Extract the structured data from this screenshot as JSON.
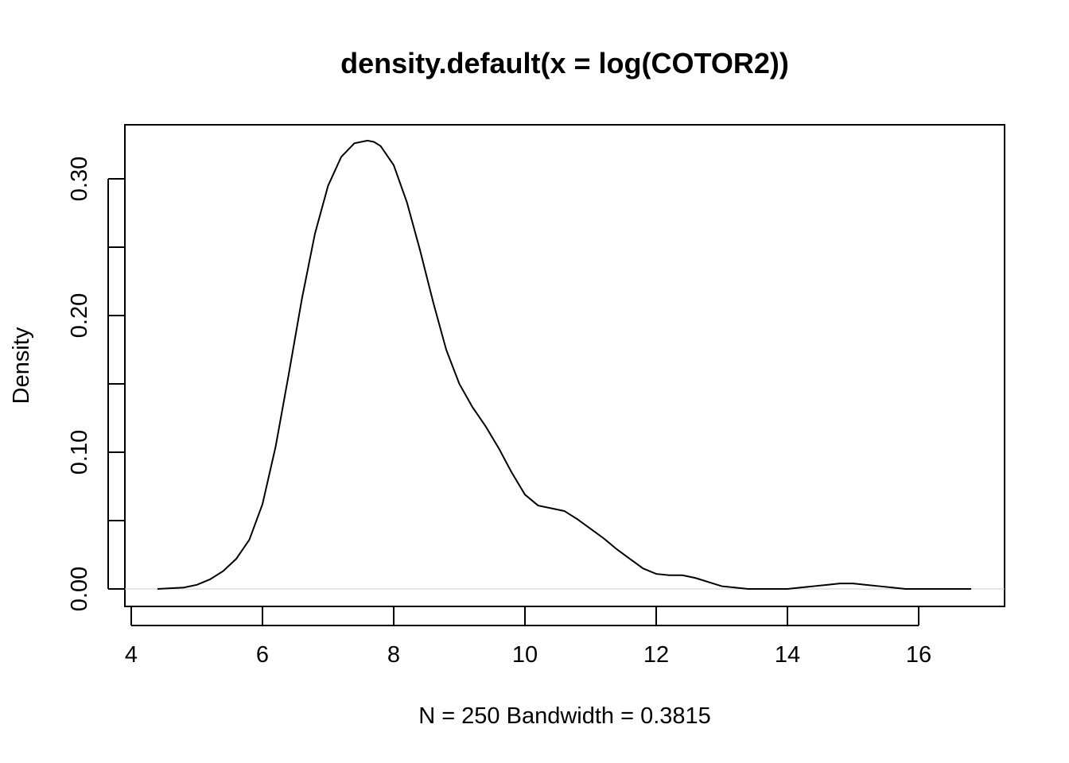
{
  "chart_data": {
    "type": "line",
    "title": "density.default(x = log(COTOR2))",
    "xlabel": "N = 250   Bandwidth = 0.3815",
    "ylabel": "Density",
    "xlim": [
      4,
      17
    ],
    "ylim": [
      -0.013,
      0.33
    ],
    "xticks": [
      4,
      6,
      8,
      10,
      12,
      14,
      16
    ],
    "xtick_labels": [
      "4",
      "6",
      "8",
      "10",
      "12",
      "14",
      "16"
    ],
    "yticks": [
      0,
      0.05,
      0.1,
      0.15,
      0.2,
      0.25,
      0.3
    ],
    "ytick_labels": [
      "0.00",
      "",
      "0.10",
      "",
      "0.20",
      "",
      "0.30"
    ],
    "grid": false,
    "series": [
      {
        "x": [
          4.4,
          4.8,
          5.0,
          5.2,
          5.4,
          5.6,
          5.8,
          6.0,
          6.2,
          6.4,
          6.6,
          6.8,
          7.0,
          7.2,
          7.4,
          7.6,
          7.7,
          7.8,
          8.0,
          8.2,
          8.4,
          8.6,
          8.8,
          9.0,
          9.2,
          9.4,
          9.6,
          9.8,
          10.0,
          10.2,
          10.4,
          10.6,
          10.8,
          11.0,
          11.2,
          11.4,
          11.6,
          11.8,
          12.0,
          12.2,
          12.4,
          12.6,
          12.8,
          13.0,
          13.2,
          13.4,
          13.6,
          13.8,
          14.0,
          14.2,
          14.4,
          14.6,
          14.8,
          15.0,
          15.2,
          15.4,
          15.6,
          15.8,
          16.0,
          16.2,
          16.4,
          16.8
        ],
        "y": [
          0.0,
          0.001,
          0.003,
          0.007,
          0.013,
          0.022,
          0.036,
          0.062,
          0.104,
          0.157,
          0.212,
          0.26,
          0.295,
          0.316,
          0.326,
          0.328,
          0.327,
          0.324,
          0.31,
          0.283,
          0.248,
          0.21,
          0.175,
          0.15,
          0.133,
          0.119,
          0.103,
          0.085,
          0.069,
          0.061,
          0.059,
          0.057,
          0.051,
          0.044,
          0.037,
          0.029,
          0.022,
          0.015,
          0.011,
          0.01,
          0.01,
          0.008,
          0.005,
          0.002,
          0.001,
          0.0,
          0.0,
          0.0,
          0.0,
          0.001,
          0.002,
          0.003,
          0.004,
          0.004,
          0.003,
          0.002,
          0.001,
          0.0,
          0.0,
          0.0,
          0.0,
          0.0
        ]
      }
    ]
  }
}
